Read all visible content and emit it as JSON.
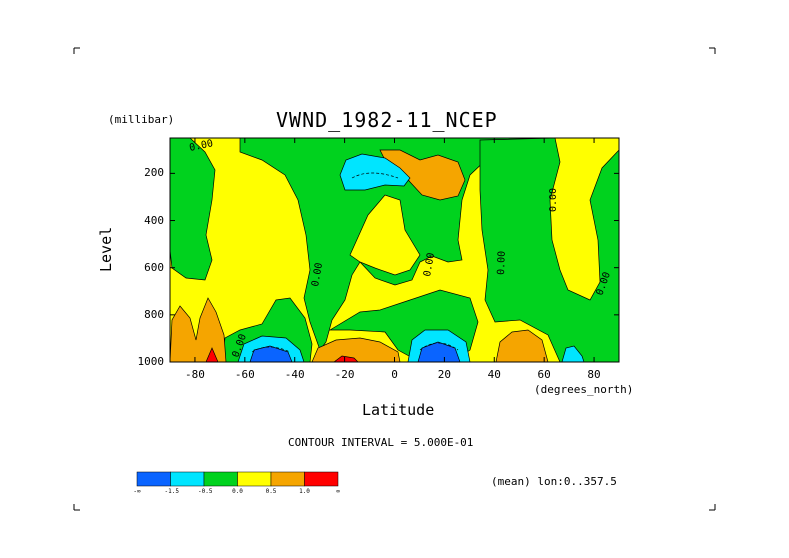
{
  "chart_data": {
    "type": "heatmap",
    "title": "VWND_1982-11_NCEP",
    "xlabel": "Latitude",
    "ylabel": "Level",
    "x_units": "(degrees_north)",
    "y_units": "(millibar)",
    "x_range": [
      -90,
      90
    ],
    "y_range": [
      50,
      1000
    ],
    "y_inverted": true,
    "x_ticks": [
      -80,
      -60,
      -40,
      -20,
      0,
      20,
      40,
      60,
      80
    ],
    "y_ticks": [
      200,
      400,
      600,
      800,
      1000
    ],
    "contour_interval_text": "CONTOUR INTERVAL = 5.000E-01",
    "averaging_text": "(mean) lon:0..357.5",
    "contour_label": "0.00",
    "colorbar": {
      "colors": [
        "#0a64ff",
        "#00e5ff",
        "#00d21e",
        "#ffff00",
        "#f5a500",
        "#ff0000"
      ],
      "labels": [
        "-∞",
        "-1.5",
        "-0.5",
        "0.0",
        "0.5",
        "1.0",
        "∞"
      ]
    },
    "regions": [
      {
        "level": "positive weak (0 to 0.5)",
        "color": "#ffff00",
        "note": "background / large yellow areas"
      },
      {
        "level": "negative weak (-0.5 to 0)",
        "color": "#00d21e"
      },
      {
        "level": "negative (-1.5 to -0.5)",
        "color": "#00e5ff"
      },
      {
        "level": "strong negative (< -1.5)",
        "color": "#0a64ff"
      },
      {
        "level": "positive (0.5 to 1.0)",
        "color": "#f5a500"
      },
      {
        "level": "strong positive (> 1.0)",
        "color": "#ff0000"
      }
    ]
  }
}
